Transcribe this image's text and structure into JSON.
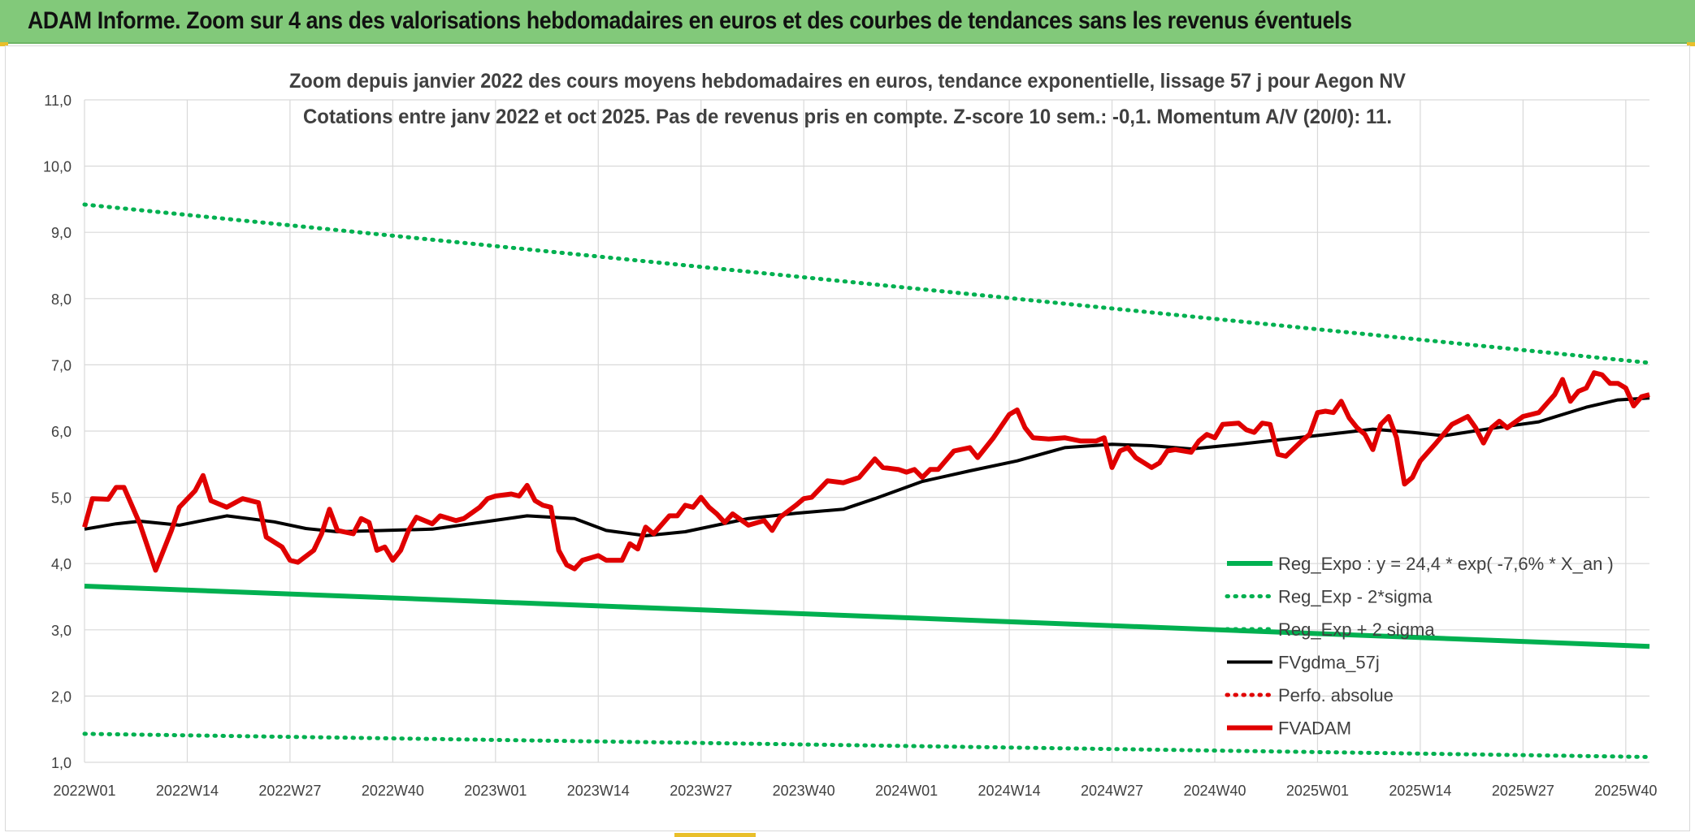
{
  "banner": {
    "title": "ADAM Informe. Zoom sur 4 ans des valorisations hebdomadaires en euros et des courbes de tendances sans les revenus éventuels",
    "color": "#82c97a"
  },
  "chart_data": {
    "type": "line",
    "title_lines": [
      "Zoom depuis janvier 2022 des cours moyens hebdomadaires en euros, tendance exponentielle, lissage 57 j pour Aegon NV",
      "Cotations entre janv 2022 et oct 2025. Pas de revenus pris en compte. Z-score 10 sem.: -0,1. Momentum A/V (20/0): 11."
    ],
    "xlabel": "",
    "ylabel": "",
    "ylim": [
      1.0,
      11.0
    ],
    "y_ticks": [
      1.0,
      2.0,
      3.0,
      4.0,
      5.0,
      6.0,
      7.0,
      8.0,
      9.0,
      10.0,
      11.0
    ],
    "y_tick_labels": [
      "1,0",
      "2,0",
      "3,0",
      "4,0",
      "5,0",
      "6,0",
      "7,0",
      "8,0",
      "9,0",
      "10,0",
      "11,0"
    ],
    "x_count": 199,
    "x_ticks": [
      0,
      13,
      26,
      39,
      52,
      65,
      78,
      91,
      104,
      117,
      130,
      143,
      156,
      169,
      182,
      195
    ],
    "x_tick_labels": [
      "2022W01",
      "2022W14",
      "2022W27",
      "2022W40",
      "2023W01",
      "2023W14",
      "2023W27",
      "2023W40",
      "2024W01",
      "2024W14",
      "2024W27",
      "2024W40",
      "2025W01",
      "2025W14",
      "2025W27",
      "2025W40"
    ],
    "grid": true,
    "legend_position": "bottom-right",
    "series": [
      {
        "name": "Reg_Expo : y = 24,4 * exp( -7,6% *  X_an )",
        "color": "#00b050",
        "style": "solid",
        "kind": "linear",
        "start": 3.66,
        "end": 2.75
      },
      {
        "name": "Reg_Exp - 2*sigma",
        "color": "#00b050",
        "style": "dotted",
        "kind": "linear",
        "start": 1.43,
        "end": 1.08
      },
      {
        "name": "Reg_Exp + 2 sigma",
        "color": "#00b050",
        "style": "dotted",
        "kind": "linear",
        "start": 9.42,
        "end": 7.03
      },
      {
        "name": "FVgdma_57j",
        "color": "#000000",
        "style": "solid",
        "kind": "anchors",
        "anchors": [
          [
            0,
            4.52
          ],
          [
            4,
            4.6
          ],
          [
            7,
            4.64
          ],
          [
            12,
            4.58
          ],
          [
            18,
            4.72
          ],
          [
            24,
            4.63
          ],
          [
            28,
            4.53
          ],
          [
            32,
            4.48
          ],
          [
            38,
            4.5
          ],
          [
            44,
            4.52
          ],
          [
            50,
            4.62
          ],
          [
            56,
            4.72
          ],
          [
            62,
            4.68
          ],
          [
            66,
            4.5
          ],
          [
            71,
            4.42
          ],
          [
            76,
            4.48
          ],
          [
            84,
            4.68
          ],
          [
            90,
            4.76
          ],
          [
            96,
            4.82
          ],
          [
            100,
            4.98
          ],
          [
            106,
            5.24
          ],
          [
            112,
            5.4
          ],
          [
            118,
            5.55
          ],
          [
            124,
            5.75
          ],
          [
            130,
            5.8
          ],
          [
            135,
            5.78
          ],
          [
            140,
            5.73
          ],
          [
            146,
            5.8
          ],
          [
            152,
            5.88
          ],
          [
            158,
            5.96
          ],
          [
            163,
            6.03
          ],
          [
            168,
            5.98
          ],
          [
            172,
            5.93
          ],
          [
            178,
            6.04
          ],
          [
            184,
            6.14
          ],
          [
            190,
            6.36
          ],
          [
            194,
            6.47
          ],
          [
            198,
            6.5
          ]
        ]
      },
      {
        "name": "Perfo. absolue",
        "color": "#e00000",
        "style": "dotted",
        "kind": "none"
      },
      {
        "name": "FVADAM",
        "color": "#e00000",
        "style": "solid",
        "kind": "anchors",
        "anchors": [
          [
            0,
            4.55
          ],
          [
            1,
            4.98
          ],
          [
            3,
            4.97
          ],
          [
            4,
            5.15
          ],
          [
            5,
            5.15
          ],
          [
            7,
            4.6
          ],
          [
            9,
            3.9
          ],
          [
            11,
            4.5
          ],
          [
            12,
            4.85
          ],
          [
            14,
            5.1
          ],
          [
            15,
            5.33
          ],
          [
            16,
            4.95
          ],
          [
            18,
            4.85
          ],
          [
            20,
            4.98
          ],
          [
            22,
            4.92
          ],
          [
            23,
            4.4
          ],
          [
            25,
            4.25
          ],
          [
            26,
            4.05
          ],
          [
            27,
            4.02
          ],
          [
            29,
            4.2
          ],
          [
            30,
            4.45
          ],
          [
            31,
            4.82
          ],
          [
            32,
            4.5
          ],
          [
            34,
            4.45
          ],
          [
            35,
            4.68
          ],
          [
            36,
            4.62
          ],
          [
            37,
            4.2
          ],
          [
            38,
            4.25
          ],
          [
            39,
            4.05
          ],
          [
            40,
            4.2
          ],
          [
            41,
            4.5
          ],
          [
            42,
            4.7
          ],
          [
            44,
            4.6
          ],
          [
            45,
            4.72
          ],
          [
            47,
            4.65
          ],
          [
            48,
            4.68
          ],
          [
            50,
            4.85
          ],
          [
            51,
            4.98
          ],
          [
            52,
            5.02
          ],
          [
            54,
            5.05
          ],
          [
            55,
            5.02
          ],
          [
            56,
            5.18
          ],
          [
            57,
            4.95
          ],
          [
            58,
            4.88
          ],
          [
            59,
            4.85
          ],
          [
            60,
            4.2
          ],
          [
            61,
            3.98
          ],
          [
            62,
            3.92
          ],
          [
            63,
            4.05
          ],
          [
            65,
            4.12
          ],
          [
            66,
            4.05
          ],
          [
            68,
            4.05
          ],
          [
            69,
            4.3
          ],
          [
            70,
            4.22
          ],
          [
            71,
            4.55
          ],
          [
            72,
            4.45
          ],
          [
            74,
            4.72
          ],
          [
            75,
            4.72
          ],
          [
            76,
            4.88
          ],
          [
            77,
            4.85
          ],
          [
            78,
            5.0
          ],
          [
            79,
            4.85
          ],
          [
            80,
            4.75
          ],
          [
            81,
            4.62
          ],
          [
            82,
            4.75
          ],
          [
            84,
            4.58
          ],
          [
            86,
            4.65
          ],
          [
            87,
            4.5
          ],
          [
            88,
            4.7
          ],
          [
            90,
            4.88
          ],
          [
            91,
            4.98
          ],
          [
            92,
            5.0
          ],
          [
            94,
            5.25
          ],
          [
            96,
            5.22
          ],
          [
            98,
            5.3
          ],
          [
            100,
            5.58
          ],
          [
            101,
            5.45
          ],
          [
            103,
            5.42
          ],
          [
            104,
            5.38
          ],
          [
            105,
            5.42
          ],
          [
            106,
            5.3
          ],
          [
            107,
            5.42
          ],
          [
            108,
            5.42
          ],
          [
            110,
            5.7
          ],
          [
            112,
            5.75
          ],
          [
            113,
            5.6
          ],
          [
            115,
            5.9
          ],
          [
            117,
            6.25
          ],
          [
            118,
            6.32
          ],
          [
            119,
            6.05
          ],
          [
            120,
            5.9
          ],
          [
            122,
            5.88
          ],
          [
            124,
            5.9
          ],
          [
            126,
            5.85
          ],
          [
            128,
            5.85
          ],
          [
            129,
            5.9
          ],
          [
            130,
            5.45
          ],
          [
            131,
            5.7
          ],
          [
            132,
            5.75
          ],
          [
            133,
            5.6
          ],
          [
            135,
            5.45
          ],
          [
            136,
            5.52
          ],
          [
            137,
            5.7
          ],
          [
            138,
            5.72
          ],
          [
            140,
            5.68
          ],
          [
            141,
            5.85
          ],
          [
            142,
            5.95
          ],
          [
            143,
            5.9
          ],
          [
            144,
            6.1
          ],
          [
            146,
            6.12
          ],
          [
            147,
            6.02
          ],
          [
            148,
            5.98
          ],
          [
            149,
            6.12
          ],
          [
            150,
            6.1
          ],
          [
            151,
            5.65
          ],
          [
            152,
            5.62
          ],
          [
            154,
            5.85
          ],
          [
            155,
            5.95
          ],
          [
            156,
            6.28
          ],
          [
            157,
            6.3
          ],
          [
            158,
            6.28
          ],
          [
            159,
            6.45
          ],
          [
            160,
            6.2
          ],
          [
            161,
            6.05
          ],
          [
            162,
            5.95
          ],
          [
            163,
            5.72
          ],
          [
            164,
            6.1
          ],
          [
            165,
            6.22
          ],
          [
            166,
            5.9
          ],
          [
            167,
            5.2
          ],
          [
            168,
            5.3
          ],
          [
            169,
            5.55
          ],
          [
            171,
            5.82
          ],
          [
            173,
            6.1
          ],
          [
            175,
            6.22
          ],
          [
            176,
            6.05
          ],
          [
            177,
            5.82
          ],
          [
            178,
            6.05
          ],
          [
            179,
            6.15
          ],
          [
            180,
            6.05
          ],
          [
            182,
            6.22
          ],
          [
            183,
            6.25
          ],
          [
            184,
            6.28
          ],
          [
            186,
            6.55
          ],
          [
            187,
            6.78
          ],
          [
            188,
            6.45
          ],
          [
            189,
            6.6
          ],
          [
            190,
            6.65
          ],
          [
            191,
            6.88
          ],
          [
            192,
            6.85
          ],
          [
            193,
            6.72
          ],
          [
            194,
            6.72
          ],
          [
            195,
            6.65
          ],
          [
            196,
            6.38
          ],
          [
            197,
            6.52
          ],
          [
            198,
            6.55
          ]
        ]
      }
    ]
  }
}
